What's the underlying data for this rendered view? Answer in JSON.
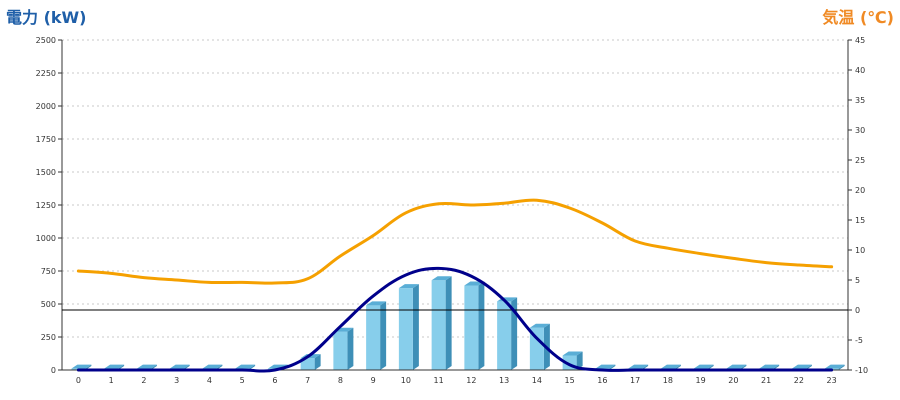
{
  "chart_data": {
    "type": "bar",
    "left_axis_title": "電力 (kW)",
    "right_axis_title": "気温 (℃)",
    "x": [
      0,
      1,
      2,
      3,
      4,
      5,
      6,
      7,
      8,
      9,
      10,
      11,
      12,
      13,
      14,
      15,
      16,
      17,
      18,
      19,
      20,
      21,
      22,
      23
    ],
    "x_tick_labels": [
      "0",
      "1",
      "2",
      "3",
      "4",
      "5",
      "6",
      "7",
      "8",
      "9",
      "10",
      "11",
      "12",
      "13",
      "14",
      "15",
      "16",
      "17",
      "18",
      "19",
      "20",
      "21",
      "22",
      "23"
    ],
    "left_axis": {
      "range": [
        0,
        2500
      ],
      "ticks": [
        0,
        250,
        500,
        750,
        1000,
        1250,
        1500,
        1750,
        2000,
        2250,
        2500
      ],
      "tick_labels": [
        "0",
        "250",
        "500",
        "750",
        "1000",
        "1250",
        "1500",
        "1750",
        "2000",
        "2250",
        "2500"
      ]
    },
    "right_axis": {
      "range": [
        -10,
        45
      ],
      "ticks": [
        -10,
        -5,
        0,
        5,
        10,
        15,
        20,
        25,
        30,
        35,
        40,
        45
      ],
      "tick_labels": [
        "-10",
        "-5",
        "0",
        "5",
        "10",
        "15",
        "20",
        "25",
        "30",
        "35",
        "40",
        "45"
      ]
    },
    "grid": true,
    "series": [
      {
        "kind": "bar",
        "axis": "left",
        "color": "#87ceeb",
        "values": [
          10,
          10,
          10,
          10,
          10,
          10,
          10,
          90,
          290,
          490,
          620,
          680,
          640,
          520,
          320,
          110,
          10,
          10,
          10,
          10,
          10,
          10,
          10,
          10
        ]
      },
      {
        "kind": "line",
        "axis": "left",
        "color": "#00008b",
        "values": [
          0,
          0,
          0,
          0,
          0,
          0,
          0,
          100,
          330,
          560,
          720,
          770,
          710,
          530,
          240,
          40,
          0,
          0,
          0,
          0,
          0,
          0,
          0,
          0
        ]
      },
      {
        "kind": "line",
        "axis": "right",
        "color": "#f5a000",
        "values": [
          6.5,
          6.1,
          5.4,
          5.0,
          4.6,
          4.6,
          4.5,
          5.2,
          9.0,
          12.4,
          16.2,
          17.7,
          17.5,
          17.8,
          18.3,
          17.0,
          14.5,
          11.5,
          10.3,
          9.4,
          8.6,
          7.9,
          7.5,
          7.2
        ]
      }
    ],
    "reference_line": {
      "axis": "right",
      "value": 0,
      "color": "#000000"
    }
  }
}
